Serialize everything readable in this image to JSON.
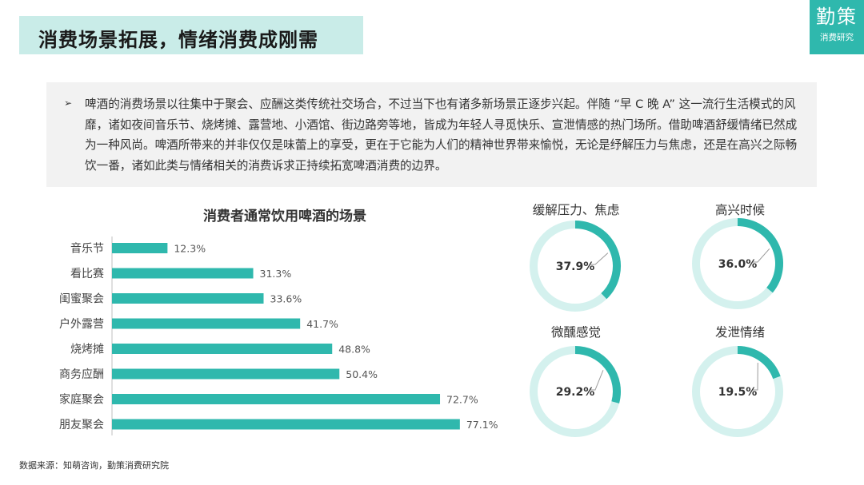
{
  "header": {
    "title": "消费场景拓展，情绪消费成刚需"
  },
  "logo": {
    "main": "勤策",
    "sub": "消费研究"
  },
  "intro": {
    "bullet": "➢",
    "text": "啤酒的消费场景以往集中于聚会、应酬这类传统社交场合，不过当下也有诸多新场景正逐步兴起。伴随 “早 C 晚 A” 这一流行生活模式的风靡，诸如夜间音乐节、烧烤摊、露营地、小酒馆、街边路旁等地，皆成为年轻人寻觅快乐、宣泄情感的热门场所。借助啤酒舒缓情绪已然成为一种风尚。啤酒所带来的并非仅仅是味蕾上的享受，更在于它能为人们的精神世界带来愉悦，无论是纾解压力与焦虑，还是在高兴之际畅饮一番，诸如此类与情绪相关的消费诉求正持续拓宽啤酒消费的边界。"
  },
  "colors": {
    "accent": "#2fb8ad",
    "ring_bg": "#d4f1ee",
    "title_band": "#c9ece8",
    "intro_bg": "#f2f2f2"
  },
  "chart_data": [
    {
      "type": "bar",
      "orientation": "horizontal",
      "title": "消费者通常饮用啤酒的场景",
      "categories": [
        "音乐节",
        "看比赛",
        "闺蜜聚会",
        "户外露营",
        "烧烤摊",
        "商务应酬",
        "家庭聚会",
        "朋友聚会"
      ],
      "values": [
        12.3,
        31.3,
        33.6,
        41.7,
        48.8,
        50.4,
        72.7,
        77.1
      ],
      "value_labels": [
        "12.3%",
        "31.3%",
        "33.6%",
        "41.7%",
        "48.8%",
        "50.4%",
        "72.7%",
        "77.1%"
      ],
      "unit": "%",
      "xlim": [
        0,
        100
      ],
      "grid": false
    },
    {
      "type": "pie",
      "style": "donut",
      "title": "缓解压力、焦虑",
      "value": 37.9,
      "label": "37.9%"
    },
    {
      "type": "pie",
      "style": "donut",
      "title": "高兴时候",
      "value": 36.0,
      "label": "36.0%"
    },
    {
      "type": "pie",
      "style": "donut",
      "title": "微醺感觉",
      "value": 29.2,
      "label": "29.2%"
    },
    {
      "type": "pie",
      "style": "donut",
      "title": "发泄情绪",
      "value": 19.5,
      "label": "19.5%"
    }
  ],
  "source": "数据来源：知萌咨询，勤策消费研究院"
}
